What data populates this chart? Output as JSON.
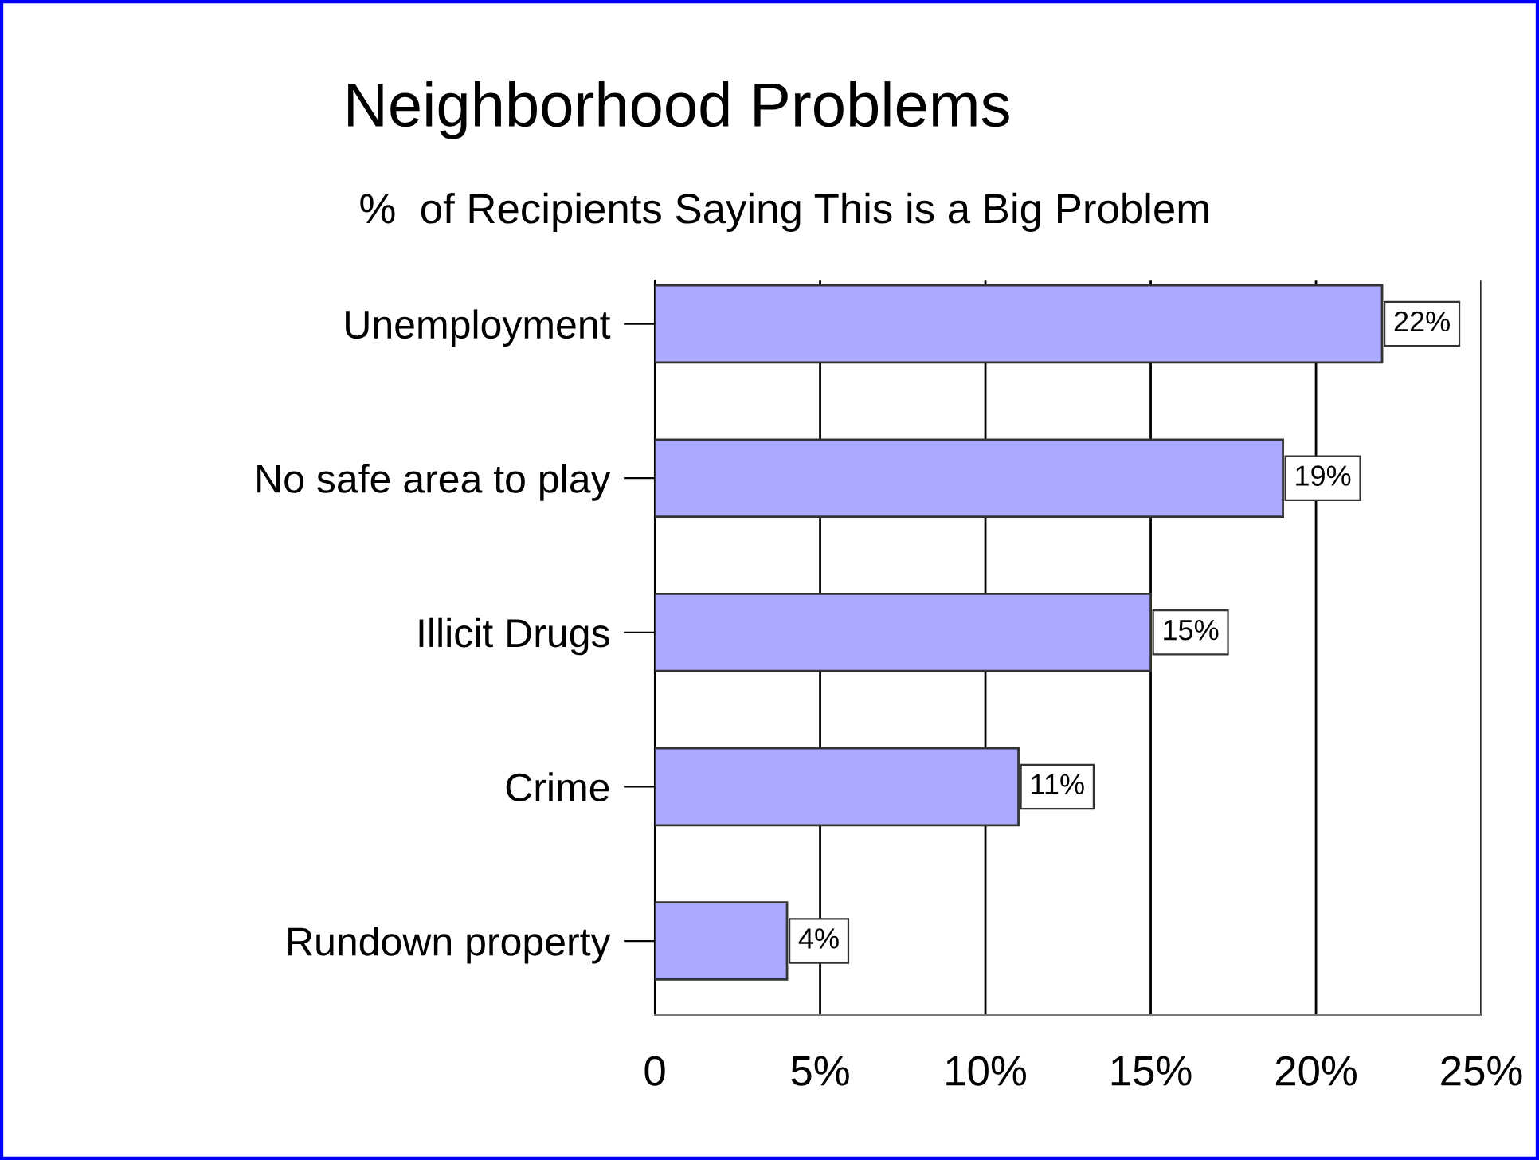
{
  "chart_data": {
    "type": "bar",
    "orientation": "horizontal",
    "title": "Neighborhood Problems",
    "subtitle": "%  of Recipients Saying This is a Big Problem",
    "categories": [
      "Unemployment",
      "No safe area to play",
      "Illicit Drugs",
      "Crime",
      "Rundown property"
    ],
    "values": [
      22,
      19,
      15,
      11,
      4
    ],
    "value_labels": [
      "22%",
      "19%",
      "15%",
      "11%",
      "4%"
    ],
    "color": "#aaaaff",
    "xlim": [
      0,
      25
    ],
    "xticks": [
      0,
      {
        "value": 5,
        "label": "5%"
      },
      {
        "value": 10,
        "label": "10%"
      },
      {
        "value": 15,
        "label": "15%"
      },
      {
        "value": 20,
        "label": "20%"
      },
      {
        "value": 25,
        "label": "25%"
      }
    ],
    "grid": "x",
    "legend": false
  }
}
